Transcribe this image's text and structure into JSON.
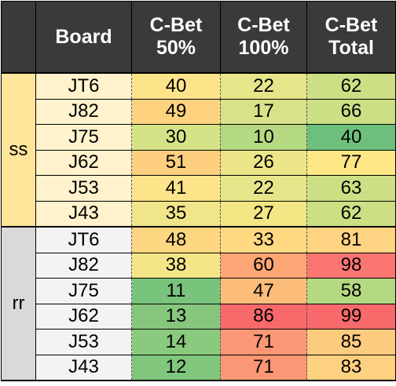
{
  "table": {
    "headers": [
      {
        "lines": [
          ""
        ]
      },
      {
        "lines": [
          "Board"
        ]
      },
      {
        "lines": [
          "C-Bet",
          "50%"
        ]
      },
      {
        "lines": [
          "C-Bet",
          "100%"
        ]
      },
      {
        "lines": [
          "C-Bet",
          "Total"
        ]
      }
    ],
    "groups": [
      {
        "label": "ss",
        "rows": [
          {
            "board": "JT6",
            "c50": "40",
            "c100": "22",
            "total": "62"
          },
          {
            "board": "J82",
            "c50": "49",
            "c100": "17",
            "total": "66"
          },
          {
            "board": "J75",
            "c50": "30",
            "c100": "10",
            "total": "40"
          },
          {
            "board": "J62",
            "c50": "51",
            "c100": "26",
            "total": "77"
          },
          {
            "board": "J53",
            "c50": "41",
            "c100": "22",
            "total": "63"
          },
          {
            "board": "J43",
            "c50": "35",
            "c100": "27",
            "total": "62"
          }
        ]
      },
      {
        "label": "rr",
        "rows": [
          {
            "board": "JT6",
            "c50": "48",
            "c100": "33",
            "total": "81"
          },
          {
            "board": "J82",
            "c50": "38",
            "c100": "60",
            "total": "98"
          },
          {
            "board": "J75",
            "c50": "11",
            "c100": "47",
            "total": "58"
          },
          {
            "board": "J62",
            "c50": "13",
            "c100": "86",
            "total": "99"
          },
          {
            "board": "J53",
            "c50": "14",
            "c100": "71",
            "total": "85"
          },
          {
            "board": "J43",
            "c50": "12",
            "c100": "71",
            "total": "83"
          }
        ]
      }
    ],
    "cell_colors": {
      "ss": [
        {
          "c50": "#fde38a",
          "c100": "#e6e58a",
          "total": "#cddf85"
        },
        {
          "c50": "#fed380",
          "c100": "#d9e288",
          "total": "#cbdf84"
        },
        {
          "c50": "#d6e288",
          "c100": "#b5d882",
          "total": "#6dbf7b"
        },
        {
          "c50": "#fdcf7f",
          "c100": "#ece688",
          "total": "#fee784"
        },
        {
          "c50": "#fde38a",
          "c100": "#e6e58a",
          "total": "#cddf85"
        },
        {
          "c50": "#f0e589",
          "c100": "#f3e785",
          "total": "#cddf85"
        }
      ],
      "rr": [
        {
          "c50": "#fed581",
          "c100": "#fed981",
          "total": "#fed381"
        },
        {
          "c50": "#f4e688",
          "c100": "#fca575",
          "total": "#fb7572"
        },
        {
          "c50": "#79c47c",
          "c100": "#fdbd7a",
          "total": "#b5d882"
        },
        {
          "c50": "#86c77d",
          "c100": "#f8696b",
          "total": "#f8696b"
        },
        {
          "c50": "#8aca7e",
          "c100": "#fb9774",
          "total": "#fdcb7e"
        },
        {
          "c50": "#80c67d",
          "c100": "#fb9774",
          "total": "#fed180"
        }
      ]
    }
  }
}
